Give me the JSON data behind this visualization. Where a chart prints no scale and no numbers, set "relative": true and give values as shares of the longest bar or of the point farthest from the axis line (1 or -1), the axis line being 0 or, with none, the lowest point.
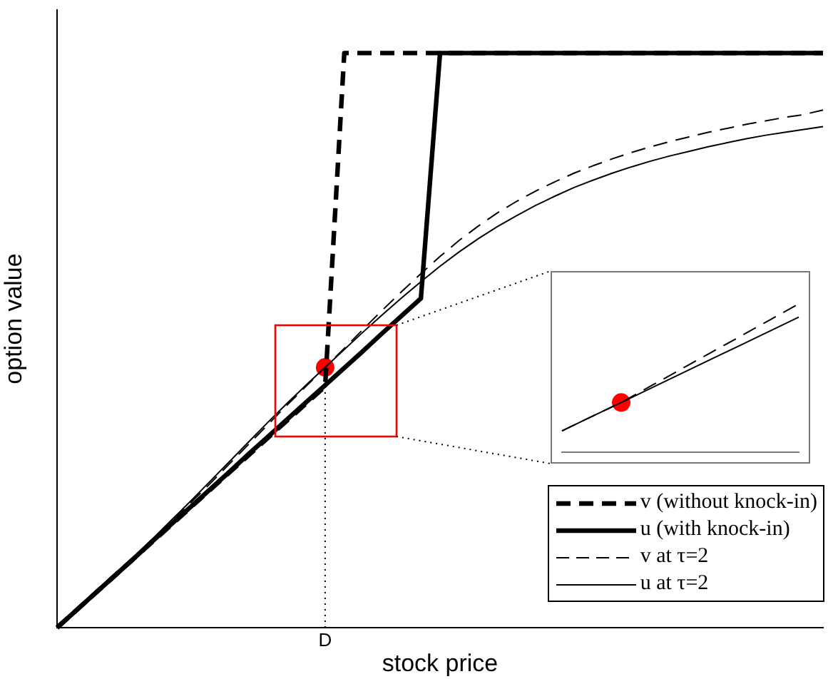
{
  "chart_data": [
    {
      "type": "line",
      "relative": true,
      "xlabel": "stock price",
      "ylabel": "option value",
      "legend": "bottom right",
      "categories": [
        null,
        null,
        null,
        null,
        null,
        null,
        null,
        null,
        null,
        null,
        null,
        null,
        null,
        null,
        null,
        null,
        null,
        null,
        null,
        null,
        null,
        null,
        null,
        null,
        null,
        null,
        null,
        null,
        null,
        null,
        null,
        null,
        null,
        null,
        null,
        null,
        null,
        null,
        null,
        null,
        null
      ],
      "series": [
        {
          "name": "v (without knock-in)",
          "color": "#000000",
          "line_style": "dashed",
          "values": [
            0,
            0.03,
            0.06,
            0.09,
            0.12,
            0.15,
            0.18,
            0.21,
            0.24,
            0.27,
            0.3,
            0.33,
            0.36,
            0.39,
            0.42,
            1,
            1,
            1,
            1,
            1,
            1,
            1,
            1,
            1,
            1,
            1,
            1,
            1,
            1,
            1,
            1,
            1,
            1,
            1,
            1,
            1,
            1,
            1,
            1,
            1,
            1
          ]
        },
        {
          "name": "u (with knock-in)",
          "color": "#000000",
          "line_style": "solid",
          "values": [
            0,
            0.03,
            0.06,
            0.09,
            0.12,
            0.151,
            0.181,
            0.211,
            0.241,
            0.271,
            0.302,
            0.332,
            0.362,
            0.392,
            0.422,
            0.452,
            0.482,
            0.513,
            0.543,
            0.573,
            1,
            1,
            1,
            1,
            1,
            1,
            1,
            1,
            1,
            1,
            1,
            1,
            1,
            1,
            1,
            1,
            1,
            1,
            1,
            1,
            1
          ]
        },
        {
          "name": "v at τ=2",
          "color": "#000000",
          "line_style": "dashed",
          "values": [
            0,
            0.03,
            0.06,
            0.091,
            0.122,
            0.153,
            0.185,
            0.218,
            0.251,
            0.285,
            0.319,
            0.353,
            0.387,
            0.42,
            0.453,
            0.486,
            0.52,
            0.553,
            0.585,
            0.616,
            0.646,
            0.674,
            0.699,
            0.722,
            0.742,
            0.76,
            0.776,
            0.791,
            0.804,
            0.816,
            0.827,
            0.837,
            0.846,
            0.854,
            0.862,
            0.869,
            0.876,
            0.882,
            0.888,
            0.893,
            0.901
          ]
        },
        {
          "name": "u at τ=2",
          "color": "#000000",
          "line_style": "solid",
          "values": [
            0,
            0.03,
            0.061,
            0.092,
            0.123,
            0.155,
            0.188,
            0.221,
            0.255,
            0.289,
            0.323,
            0.357,
            0.39,
            0.422,
            0.453,
            0.484,
            0.515,
            0.545,
            0.574,
            0.602,
            0.629,
            0.654,
            0.677,
            0.698,
            0.717,
            0.735,
            0.751,
            0.766,
            0.779,
            0.791,
            0.802,
            0.812,
            0.821,
            0.829,
            0.837,
            0.844,
            0.851,
            0.857,
            0.862,
            0.867,
            0.872
          ]
        },
        {
          "color": "#ff0000",
          "marker": "circle",
          "values": [
            null,
            null,
            null,
            null,
            null,
            null,
            null,
            null,
            null,
            null,
            null,
            null,
            null,
            null,
            0.453,
            null,
            null,
            null,
            null,
            null,
            null,
            null,
            null,
            null,
            null,
            null,
            null,
            null,
            null,
            null,
            null,
            null,
            null,
            null,
            null,
            null,
            null,
            null,
            null,
            null,
            null
          ]
        }
      ],
      "ref_lines": [
        {
          "axis": "x",
          "value": "D",
          "color": "#000000",
          "line_style": "dotted"
        }
      ]
    },
    {
      "type": "line",
      "relative": true,
      "categories": [
        null,
        null,
        null,
        null,
        null,
        null,
        null,
        null,
        null
      ],
      "series": [
        {
          "color": "#000000",
          "line_style": "dashed",
          "values": [
            0.144,
            0.24,
            0.335,
            0.446,
            0.557,
            0.668,
            0.778,
            0.889,
            1
          ]
        },
        {
          "color": "#000000",
          "line_style": "solid",
          "values": [
            0.144,
            0.24,
            0.335,
            0.431,
            0.527,
            0.623,
            0.718,
            0.814,
            0.91
          ]
        },
        {
          "color": "#ff0000",
          "marker": "circle",
          "values": [
            null,
            null,
            0.335,
            null,
            null,
            null,
            null,
            null,
            null
          ]
        }
      ]
    }
  ]
}
